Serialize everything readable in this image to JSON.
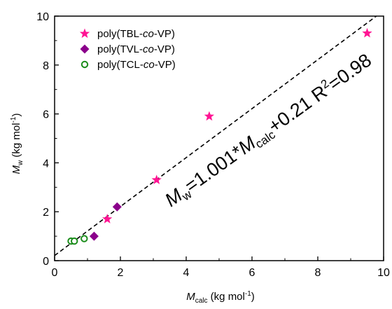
{
  "chart_data": {
    "type": "scatter",
    "xlabel": {
      "main": "M",
      "sub": "calc",
      "unit": " (kg mol",
      "sup": "-1",
      "close": ")"
    },
    "ylabel": {
      "main": "M",
      "sub": "w",
      "unit": " (kg mol",
      "sup": "-1",
      "close": ")"
    },
    "xlim": [
      0,
      10
    ],
    "ylim": [
      0,
      10
    ],
    "xticks": [
      "0",
      "2",
      "4",
      "6",
      "8",
      "10"
    ],
    "yticks": [
      "0",
      "2",
      "4",
      "6",
      "8",
      "10"
    ],
    "grid": false,
    "legend_position": "top-left",
    "series": [
      {
        "name": {
          "pre": "poly(TBL-",
          "ital": "co",
          "post": "-VP)"
        },
        "marker": "star",
        "color": "#ff1493",
        "filled": true,
        "points": [
          [
            1.6,
            1.7
          ],
          [
            3.1,
            3.3
          ],
          [
            4.7,
            5.9
          ],
          [
            9.5,
            9.3
          ]
        ]
      },
      {
        "name": {
          "pre": "poly(TVL-",
          "ital": "co",
          "post": "-VP)"
        },
        "marker": "diamond",
        "color": "#8b008b",
        "filled": true,
        "points": [
          [
            1.2,
            1.0
          ],
          [
            1.9,
            2.2
          ]
        ]
      },
      {
        "name": {
          "pre": "poly(TCL-",
          "ital": "co",
          "post": "-VP)"
        },
        "marker": "circle",
        "color": "#1a8c1a",
        "filled": false,
        "points": [
          [
            0.5,
            0.8
          ],
          [
            0.6,
            0.8
          ],
          [
            0.9,
            0.9
          ]
        ]
      }
    ],
    "fit_line": {
      "slope": 1.001,
      "intercept": 0.21,
      "style": "dashed",
      "color": "#000000"
    },
    "annotation": {
      "m": "M",
      "w_sub": "w",
      "mid": "=1.001*",
      "m2": "M",
      "calc_sub": "calc",
      "tail": "+0.21  R",
      "r_sup": "2",
      "end": "=0.98"
    }
  }
}
